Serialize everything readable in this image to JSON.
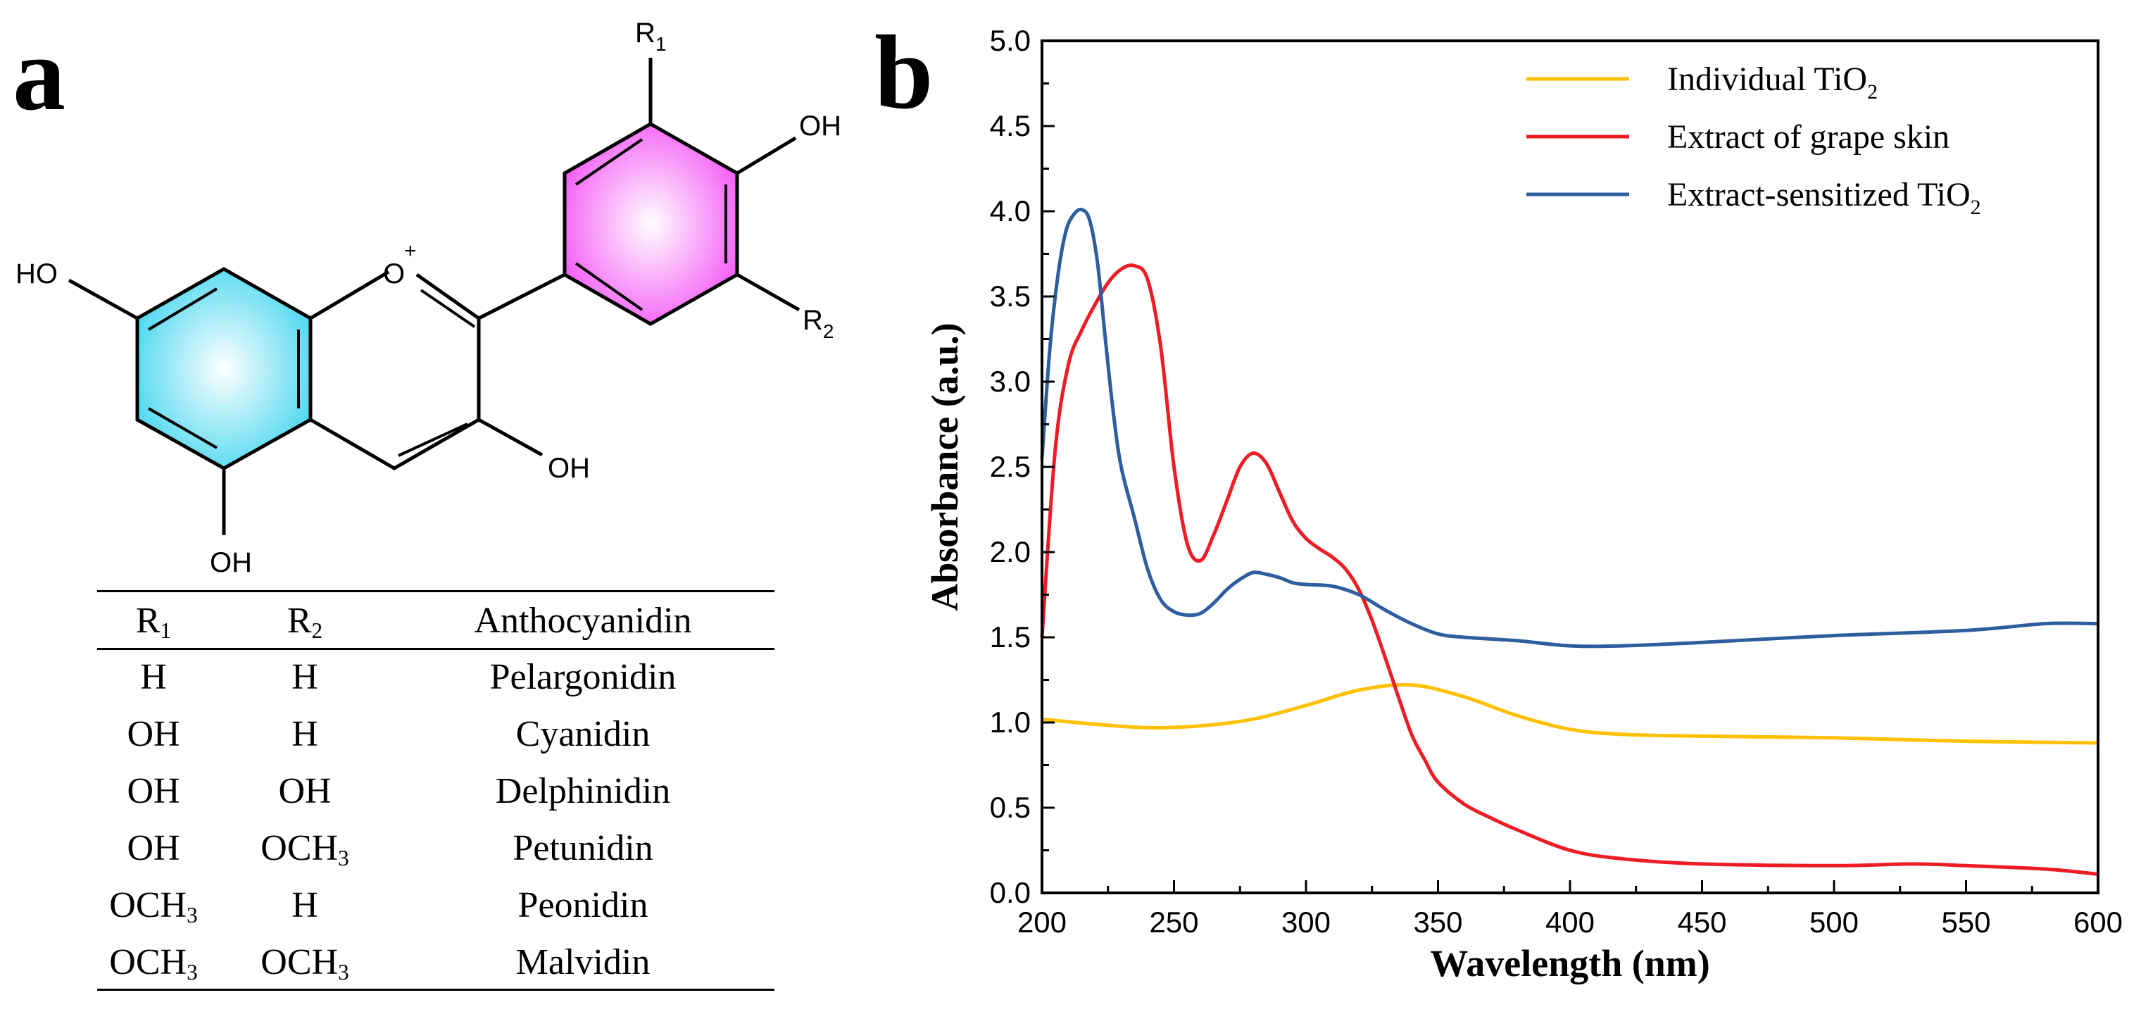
{
  "panel_a": {
    "letter": "a",
    "structure_labels": {
      "r1": "R",
      "r1_sub": "1",
      "r2": "R",
      "r2_sub": "2",
      "oh_top_right": "OH",
      "ho_left": "HO",
      "o_plus": "O",
      "plus": "+",
      "oh_bottom_right": "OH",
      "oh_bottom": "OH"
    },
    "colors": {
      "ring_a": "#4fd8f0",
      "ring_b": "#f45ef6"
    },
    "table": {
      "headers": [
        {
          "main": "R",
          "sub": "1"
        },
        {
          "main": "R",
          "sub": "2"
        },
        {
          "main": "Anthocyanidin",
          "sub": ""
        }
      ],
      "rows": [
        {
          "r1": "H",
          "r1_sub": "",
          "r2": "H",
          "r2_sub": "",
          "name": "Pelargonidin"
        },
        {
          "r1": "OH",
          "r1_sub": "",
          "r2": "H",
          "r2_sub": "",
          "name": "Cyanidin"
        },
        {
          "r1": "OH",
          "r1_sub": "",
          "r2": "OH",
          "r2_sub": "",
          "name": "Delphinidin"
        },
        {
          "r1": "OH",
          "r1_sub": "",
          "r2": "OCH",
          "r2_sub": "3",
          "name": "Petunidin"
        },
        {
          "r1": "OCH",
          "r1_sub": "3",
          "r2": "H",
          "r2_sub": "",
          "name": "Peonidin"
        },
        {
          "r1": "OCH",
          "r1_sub": "3",
          "r2": "OCH",
          "r2_sub": "3",
          "name": "Malvidin"
        }
      ]
    }
  },
  "panel_b": {
    "letter": "b",
    "legend": [
      {
        "label": "Individual TiO",
        "sub": "2"
      },
      {
        "label": "Extract of grape skin",
        "sub": ""
      },
      {
        "label": "Extract-sensitized TiO",
        "sub": "2"
      }
    ]
  },
  "chart_data": {
    "type": "line",
    "xlabel": "Wavelength (nm)",
    "ylabel": "Absorbance (a.u.)",
    "xlim": [
      200,
      600
    ],
    "ylim": [
      0.0,
      5.0
    ],
    "xticks": [
      200,
      250,
      300,
      350,
      400,
      450,
      500,
      550,
      600
    ],
    "yticks": [
      "0.0",
      "0.5",
      "1.0",
      "1.5",
      "2.0",
      "2.5",
      "3.0",
      "3.5",
      "4.0",
      "4.5",
      "5.0"
    ],
    "legend_position": "top-right",
    "series": [
      {
        "name": "Individual TiO2",
        "color": "#ffc000",
        "x": [
          200,
          220,
          240,
          260,
          280,
          300,
          320,
          340,
          360,
          380,
          400,
          420,
          450,
          500,
          550,
          600
        ],
        "y": [
          1.02,
          0.99,
          0.97,
          0.98,
          1.02,
          1.1,
          1.19,
          1.22,
          1.15,
          1.04,
          0.96,
          0.93,
          0.92,
          0.91,
          0.89,
          0.88
        ]
      },
      {
        "name": "Extract of grape skin",
        "color": "#ee1c25",
        "x": [
          200,
          205,
          210,
          215,
          220,
          225,
          230,
          235,
          240,
          245,
          250,
          255,
          260,
          265,
          270,
          275,
          280,
          285,
          290,
          295,
          300,
          305,
          310,
          315,
          320,
          325,
          330,
          335,
          340,
          345,
          350,
          360,
          370,
          380,
          400,
          420,
          450,
          500,
          530,
          550,
          580,
          600
        ],
        "y": [
          1.5,
          2.6,
          3.1,
          3.3,
          3.45,
          3.58,
          3.66,
          3.68,
          3.6,
          3.2,
          2.5,
          2.05,
          1.95,
          2.1,
          2.3,
          2.5,
          2.58,
          2.52,
          2.35,
          2.18,
          2.08,
          2.02,
          1.97,
          1.9,
          1.78,
          1.6,
          1.38,
          1.15,
          0.93,
          0.78,
          0.65,
          0.52,
          0.44,
          0.37,
          0.25,
          0.2,
          0.17,
          0.16,
          0.17,
          0.16,
          0.14,
          0.11
        ]
      },
      {
        "name": "Extract-sensitized TiO2",
        "color": "#2e5e9e",
        "x": [
          200,
          203,
          206,
          209,
          212,
          215,
          218,
          221,
          224,
          227,
          230,
          235,
          240,
          245,
          250,
          255,
          260,
          265,
          270,
          275,
          280,
          285,
          290,
          295,
          300,
          310,
          320,
          330,
          340,
          350,
          360,
          380,
          400,
          420,
          450,
          500,
          550,
          580,
          600
        ],
        "y": [
          2.55,
          3.2,
          3.62,
          3.88,
          3.98,
          4.01,
          3.95,
          3.7,
          3.25,
          2.82,
          2.5,
          2.2,
          1.9,
          1.72,
          1.65,
          1.63,
          1.64,
          1.7,
          1.78,
          1.84,
          1.88,
          1.87,
          1.85,
          1.82,
          1.81,
          1.8,
          1.75,
          1.66,
          1.58,
          1.52,
          1.5,
          1.48,
          1.45,
          1.45,
          1.47,
          1.51,
          1.54,
          1.58,
          1.58
        ]
      }
    ]
  }
}
